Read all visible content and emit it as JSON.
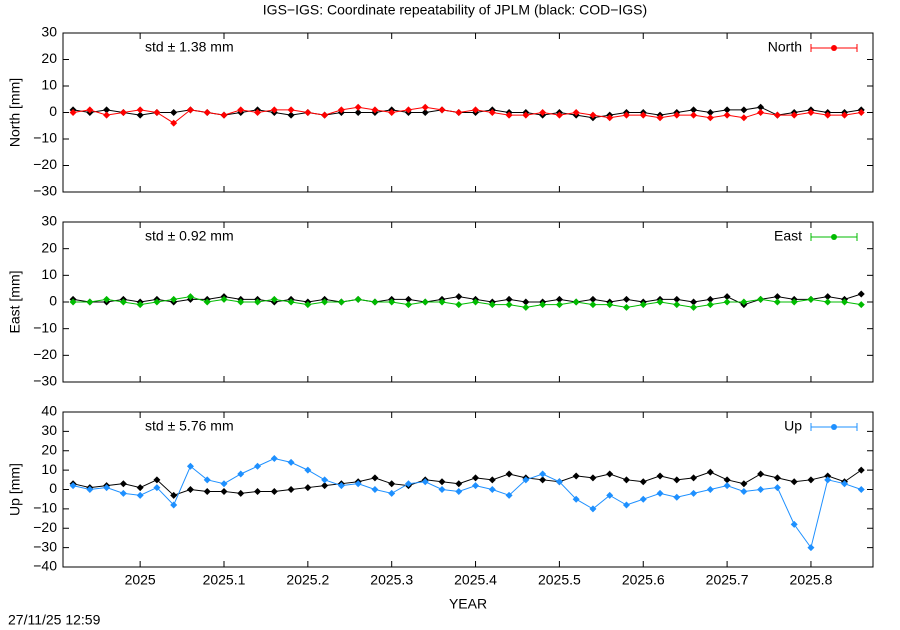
{
  "title": "IGS−IGS: Coordinate repeatability of JPLM (black: COD−IGS)",
  "timestamp": "27/11/25 12:59",
  "chart_data": [
    {
      "type": "line",
      "y_label": "North [mm]",
      "annotation": "std ± 1.38 mm",
      "annotation_color": "#ff0000",
      "legend": "upper right",
      "x": [
        2024.92,
        2024.94,
        2024.96,
        2024.98,
        2025.0,
        2025.02,
        2025.04,
        2025.06,
        2025.08,
        2025.1,
        2025.12,
        2025.14,
        2025.16,
        2025.18,
        2025.2,
        2025.22,
        2025.24,
        2025.26,
        2025.28,
        2025.3,
        2025.32,
        2025.34,
        2025.36,
        2025.38,
        2025.4,
        2025.42,
        2025.44,
        2025.46,
        2025.48,
        2025.5,
        2025.52,
        2025.54,
        2025.56,
        2025.58,
        2025.6,
        2025.62,
        2025.64,
        2025.66,
        2025.68,
        2025.7,
        2025.72,
        2025.74,
        2025.76,
        2025.78,
        2025.8,
        2025.82,
        2025.84,
        2025.86
      ],
      "xlim": [
        2024.908,
        2025.874
      ],
      "xticks": [
        2025,
        2025.1,
        2025.2,
        2025.3,
        2025.4,
        2025.5,
        2025.6,
        2025.7,
        2025.8
      ],
      "ylim": [
        -30,
        30
      ],
      "yticks": [
        {
          "value": -30,
          "label": "−30"
        },
        {
          "value": -20,
          "label": "−20"
        },
        {
          "value": -10,
          "label": "−10"
        },
        0,
        10,
        20,
        30
      ],
      "series": [
        {
          "color": "#000000",
          "values": [
            1,
            0,
            1,
            0,
            -1,
            0,
            0,
            1,
            0,
            -1,
            0,
            1,
            0,
            -1,
            0,
            -1,
            0,
            0,
            0,
            1,
            0,
            0,
            1,
            0,
            0,
            1,
            0,
            0,
            -1,
            0,
            -1,
            -2,
            -1,
            0,
            0,
            -1,
            0,
            1,
            0,
            1,
            1,
            2,
            -1,
            0,
            1,
            0,
            0,
            1
          ]
        },
        {
          "name": "North",
          "color": "#ff0000",
          "values": [
            0,
            1,
            -1,
            0,
            1,
            0,
            -4,
            1,
            0,
            -1,
            1,
            0,
            1,
            1,
            0,
            -1,
            1,
            2,
            1,
            0,
            1,
            2,
            1,
            0,
            1,
            0,
            -1,
            -1,
            0,
            -1,
            0,
            -1,
            -2,
            -1,
            -1,
            -2,
            -1,
            -1,
            -2,
            -1,
            -2,
            0,
            -1,
            -1,
            0,
            -1,
            -1,
            0
          ]
        }
      ]
    },
    {
      "type": "line",
      "y_label": "East [mm]",
      "annotation": "std ± 0.92 mm",
      "annotation_color": "#00bb00",
      "legend": "upper right",
      "x": [
        2024.92,
        2024.94,
        2024.96,
        2024.98,
        2025.0,
        2025.02,
        2025.04,
        2025.06,
        2025.08,
        2025.1,
        2025.12,
        2025.14,
        2025.16,
        2025.18,
        2025.2,
        2025.22,
        2025.24,
        2025.26,
        2025.28,
        2025.3,
        2025.32,
        2025.34,
        2025.36,
        2025.38,
        2025.4,
        2025.42,
        2025.44,
        2025.46,
        2025.48,
        2025.5,
        2025.52,
        2025.54,
        2025.56,
        2025.58,
        2025.6,
        2025.62,
        2025.64,
        2025.66,
        2025.68,
        2025.7,
        2025.72,
        2025.74,
        2025.76,
        2025.78,
        2025.8,
        2025.82,
        2025.84,
        2025.86
      ],
      "xlim": [
        2024.908,
        2025.874
      ],
      "xticks": [
        2025,
        2025.1,
        2025.2,
        2025.3,
        2025.4,
        2025.5,
        2025.6,
        2025.7,
        2025.8
      ],
      "ylim": [
        -30,
        30
      ],
      "yticks": [
        {
          "value": -30,
          "label": "−30"
        },
        {
          "value": -20,
          "label": "−20"
        },
        {
          "value": -10,
          "label": "−10"
        },
        0,
        10,
        20,
        30
      ],
      "series": [
        {
          "color": "#000000",
          "values": [
            1,
            0,
            0,
            1,
            0,
            1,
            0,
            1,
            1,
            2,
            1,
            1,
            0,
            1,
            0,
            1,
            0,
            1,
            0,
            1,
            1,
            0,
            1,
            2,
            1,
            0,
            1,
            0,
            0,
            1,
            0,
            1,
            0,
            1,
            0,
            1,
            1,
            0,
            1,
            2,
            -1,
            1,
            2,
            1,
            1,
            2,
            1,
            3
          ]
        },
        {
          "name": "East",
          "color": "#00bb00",
          "values": [
            0,
            0,
            1,
            0,
            -1,
            0,
            1,
            2,
            0,
            1,
            0,
            0,
            1,
            0,
            -1,
            0,
            0,
            1,
            0,
            0,
            -1,
            0,
            0,
            -1,
            0,
            -1,
            -1,
            -2,
            -1,
            -1,
            0,
            -1,
            -1,
            -2,
            -1,
            0,
            -1,
            -2,
            -1,
            0,
            0,
            1,
            0,
            0,
            1,
            0,
            0,
            -1
          ]
        }
      ]
    },
    {
      "type": "line",
      "y_label": "Up [mm]",
      "x_label": "YEAR",
      "annotation": "std ± 5.76 mm",
      "annotation_color": "#1e90ff",
      "legend": "upper right",
      "x": [
        2024.92,
        2024.94,
        2024.96,
        2024.98,
        2025.0,
        2025.02,
        2025.04,
        2025.06,
        2025.08,
        2025.1,
        2025.12,
        2025.14,
        2025.16,
        2025.18,
        2025.2,
        2025.22,
        2025.24,
        2025.26,
        2025.28,
        2025.3,
        2025.32,
        2025.34,
        2025.36,
        2025.38,
        2025.4,
        2025.42,
        2025.44,
        2025.46,
        2025.48,
        2025.5,
        2025.52,
        2025.54,
        2025.56,
        2025.58,
        2025.6,
        2025.62,
        2025.64,
        2025.66,
        2025.68,
        2025.7,
        2025.72,
        2025.74,
        2025.76,
        2025.78,
        2025.8,
        2025.82,
        2025.84,
        2025.86
      ],
      "xlim": [
        2024.908,
        2025.874
      ],
      "xticks": [
        2025,
        2025.1,
        2025.2,
        2025.3,
        2025.4,
        2025.5,
        2025.6,
        2025.7,
        2025.8
      ],
      "ylim": [
        -40,
        40
      ],
      "yticks": [
        {
          "value": -40,
          "label": "−40"
        },
        {
          "value": -30,
          "label": "−30"
        },
        {
          "value": -20,
          "label": "−20"
        },
        {
          "value": -10,
          "label": "−10"
        },
        0,
        10,
        20,
        30,
        40
      ],
      "series": [
        {
          "color": "#000000",
          "values": [
            3,
            1,
            2,
            3,
            1,
            5,
            -3,
            0,
            -1,
            -1,
            -2,
            -1,
            -1,
            0,
            1,
            2,
            3,
            4,
            6,
            3,
            2,
            5,
            4,
            3,
            6,
            5,
            8,
            6,
            5,
            4,
            7,
            6,
            8,
            5,
            4,
            7,
            5,
            6,
            9,
            5,
            3,
            8,
            6,
            4,
            5,
            7,
            4,
            10
          ]
        },
        {
          "name": "Up",
          "color": "#1e90ff",
          "values": [
            2,
            0,
            1,
            -2,
            -3,
            1,
            -8,
            12,
            5,
            3,
            8,
            12,
            16,
            14,
            10,
            5,
            2,
            3,
            0,
            -2,
            3,
            4,
            0,
            -1,
            2,
            0,
            -3,
            5,
            8,
            4,
            -5,
            -10,
            -3,
            -8,
            -5,
            -2,
            -4,
            -2,
            0,
            2,
            -1,
            0,
            1,
            -18,
            -30,
            5,
            3,
            0
          ]
        }
      ]
    }
  ]
}
